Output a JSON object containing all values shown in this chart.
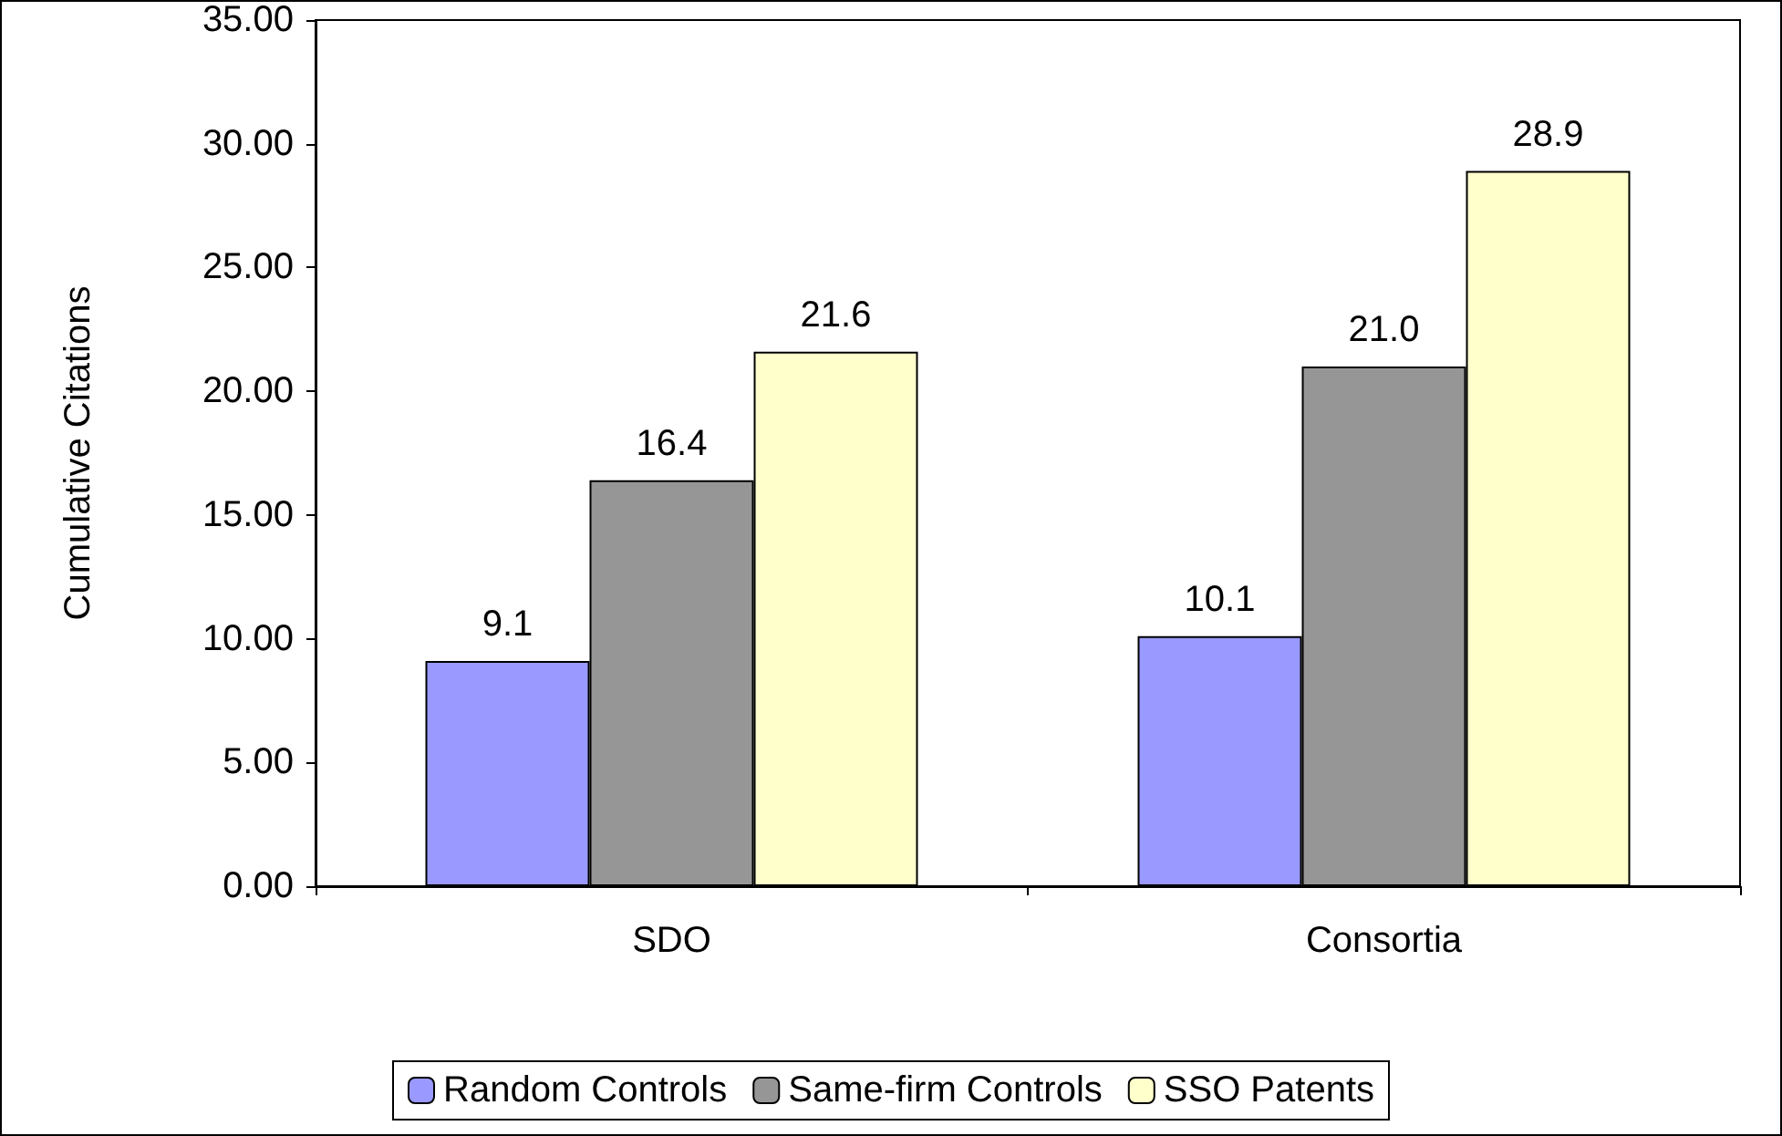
{
  "chart_data": {
    "type": "bar",
    "ylabel": "Cumulative Citations",
    "categories": [
      "SDO",
      "Consortia"
    ],
    "series": [
      {
        "name": "Random Controls",
        "color": "#9999ff",
        "values": [
          9.1,
          10.1
        ],
        "value_labels": [
          "9.1",
          "10.1"
        ]
      },
      {
        "name": "Same-firm Controls",
        "color": "#969696",
        "values": [
          16.4,
          21.0
        ],
        "value_labels": [
          "16.4",
          "21.0"
        ]
      },
      {
        "name": "SSO Patents",
        "color": "#ffffcc",
        "values": [
          21.6,
          28.9
        ],
        "value_labels": [
          "21.6",
          "28.9"
        ]
      }
    ],
    "ylim": [
      0,
      35
    ],
    "yticks": [
      {
        "value": 0,
        "label": "0.00"
      },
      {
        "value": 5,
        "label": "5.00"
      },
      {
        "value": 10,
        "label": "10.00"
      },
      {
        "value": 15,
        "label": "15.00"
      },
      {
        "value": 20,
        "label": "20.00"
      },
      {
        "value": 25,
        "label": "25.00"
      },
      {
        "value": 30,
        "label": "30.00"
      },
      {
        "value": 35,
        "label": "35.00"
      }
    ],
    "grid": false,
    "legend": "bottom"
  }
}
